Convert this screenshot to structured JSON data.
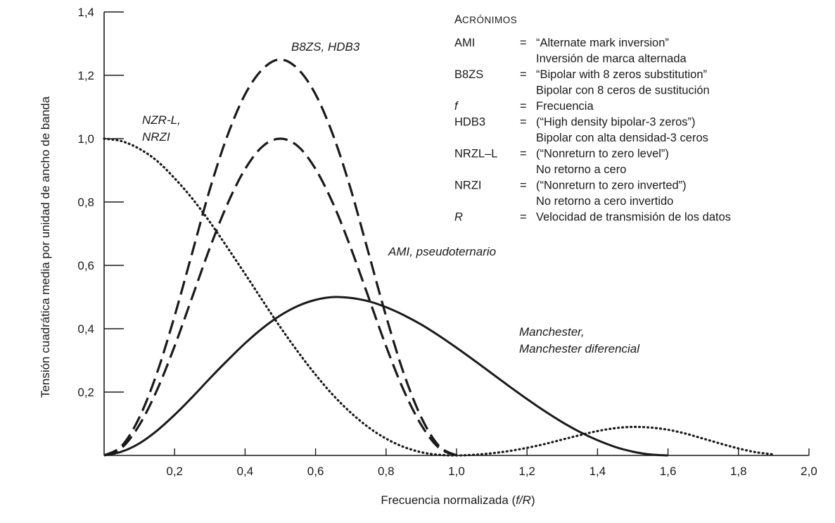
{
  "chart_data": {
    "type": "line",
    "xlabel": "Frecuencia normalizada (",
    "xlabel_italic": "f/R",
    "xlabel_close": ")",
    "ylabel": "Tensión cuadrática media por unidad de ancho de banda",
    "xlim": [
      0,
      2.0
    ],
    "ylim": [
      0,
      1.4
    ],
    "x_ticks": [
      {
        "v": 0.2,
        "label": "0,2"
      },
      {
        "v": 0.4,
        "label": "0,4"
      },
      {
        "v": 0.6,
        "label": "0,6"
      },
      {
        "v": 0.8,
        "label": "0,8"
      },
      {
        "v": 1.0,
        "label": "1,0"
      },
      {
        "v": 1.2,
        "label": "1,2"
      },
      {
        "v": 1.4,
        "label": "1,4"
      },
      {
        "v": 1.6,
        "label": "1,6"
      },
      {
        "v": 1.8,
        "label": "1,8"
      },
      {
        "v": 2.0,
        "label": "2,0"
      }
    ],
    "y_ticks": [
      {
        "v": 0.2,
        "label": "0,2"
      },
      {
        "v": 0.4,
        "label": "0,4"
      },
      {
        "v": 0.6,
        "label": "0,6"
      },
      {
        "v": 0.8,
        "label": "0,8"
      },
      {
        "v": 1.0,
        "label": "1,0"
      },
      {
        "v": 1.2,
        "label": "1,2"
      },
      {
        "v": 1.4,
        "label": "1,4"
      }
    ],
    "grid": false,
    "series": [
      {
        "name": "NZR-L, NRZI",
        "style": "dotted",
        "x": [
          0.0,
          0.05,
          0.1,
          0.15,
          0.2,
          0.25,
          0.3,
          0.35,
          0.4,
          0.45,
          0.5,
          0.55,
          0.6,
          0.65,
          0.7,
          0.75,
          0.8,
          0.85,
          0.9,
          0.95,
          1.0,
          1.05,
          1.1,
          1.15,
          1.2,
          1.25,
          1.3,
          1.35,
          1.4,
          1.45,
          1.5,
          1.55,
          1.6,
          1.65,
          1.7,
          1.75,
          1.8,
          1.85,
          1.9
        ],
        "values": [
          1.0,
          0.992,
          0.968,
          0.93,
          0.875,
          0.811,
          0.737,
          0.656,
          0.573,
          0.488,
          0.405,
          0.327,
          0.255,
          0.19,
          0.135,
          0.089,
          0.053,
          0.027,
          0.01,
          0.002,
          0.0,
          0.002,
          0.007,
          0.014,
          0.024,
          0.036,
          0.05,
          0.064,
          0.077,
          0.086,
          0.09,
          0.088,
          0.081,
          0.069,
          0.053,
          0.037,
          0.022,
          0.01,
          0.003
        ]
      },
      {
        "name": "B8ZS, HDB3",
        "style": "dashed",
        "x": [
          0.0,
          0.05,
          0.1,
          0.15,
          0.2,
          0.25,
          0.3,
          0.35,
          0.4,
          0.45,
          0.5,
          0.55,
          0.6,
          0.65,
          0.7,
          0.75,
          0.8,
          0.85,
          0.9,
          0.95,
          1.0
        ],
        "values": [
          0.0,
          0.03,
          0.12,
          0.26,
          0.44,
          0.64,
          0.84,
          1.01,
          1.14,
          1.22,
          1.25,
          1.22,
          1.14,
          1.01,
          0.84,
          0.64,
          0.44,
          0.26,
          0.12,
          0.03,
          0.0
        ]
      },
      {
        "name": "AMI, pseudoternario",
        "style": "dashed",
        "x": [
          0.0,
          0.05,
          0.1,
          0.15,
          0.2,
          0.25,
          0.3,
          0.35,
          0.4,
          0.45,
          0.5,
          0.55,
          0.6,
          0.65,
          0.7,
          0.75,
          0.8,
          0.85,
          0.9,
          0.95,
          1.0
        ],
        "values": [
          0.0,
          0.024,
          0.096,
          0.206,
          0.345,
          0.5,
          0.655,
          0.794,
          0.904,
          0.976,
          1.0,
          0.976,
          0.904,
          0.794,
          0.655,
          0.5,
          0.345,
          0.206,
          0.096,
          0.024,
          0.0
        ]
      },
      {
        "name": "Manchester, Manchester diferencial",
        "style": "solid",
        "x": [
          0.0,
          0.05,
          0.1,
          0.15,
          0.2,
          0.25,
          0.3,
          0.35,
          0.4,
          0.45,
          0.5,
          0.55,
          0.6,
          0.65,
          0.7,
          0.75,
          0.8,
          0.85,
          0.9,
          0.95,
          1.0,
          1.05,
          1.1,
          1.15,
          1.2,
          1.25,
          1.3,
          1.35,
          1.4,
          1.45,
          1.5,
          1.55,
          1.6
        ],
        "values": [
          0.0,
          0.012,
          0.038,
          0.078,
          0.128,
          0.184,
          0.243,
          0.3,
          0.354,
          0.402,
          0.442,
          0.472,
          0.491,
          0.5,
          0.497,
          0.487,
          0.468,
          0.443,
          0.413,
          0.378,
          0.34,
          0.3,
          0.259,
          0.218,
          0.178,
          0.14,
          0.105,
          0.074,
          0.048,
          0.027,
          0.012,
          0.003,
          0.0
        ]
      }
    ],
    "curve_labels": {
      "nrz_line1": "NZR-L,",
      "nrz_line2": "NRZI",
      "b8zs": "B8ZS, HDB3",
      "ami": "AMI, pseudoternario",
      "manch_line1": "Manchester,",
      "manch_line2": "Manchester diferencial"
    },
    "legend_placement": "top-right"
  },
  "legend": {
    "title_first": "A",
    "title_rest": "CRÓNIMOS",
    "eq": "=",
    "rows": [
      {
        "key": "AMI",
        "italic": false,
        "value": "“Alternate mark inversion”",
        "translation": "Inversión de marca alternada"
      },
      {
        "key": "B8ZS",
        "italic": false,
        "value": "“Bipolar with 8 zeros substitution”",
        "translation": "Bipolar con 8 ceros de sustitución"
      },
      {
        "key": "f",
        "italic": true,
        "value": "Frecuencia",
        "translation": ""
      },
      {
        "key": "HDB3",
        "italic": false,
        "value": "(“High density bipolar-3 zeros”)",
        "translation": "Bipolar con alta densidad-3 ceros"
      },
      {
        "key": "NRZL–L",
        "italic": false,
        "value": "(“Nonreturn to zero level”)",
        "translation": "No retorno a cero"
      },
      {
        "key": "NRZI",
        "italic": false,
        "value": "(“Nonreturn to zero inverted”)",
        "translation": "No retorno a cero invertido"
      },
      {
        "key": "R",
        "italic": true,
        "value": "Velocidad de transmisión de los datos",
        "translation": ""
      }
    ]
  }
}
